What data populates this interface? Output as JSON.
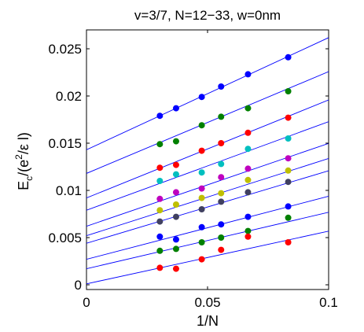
{
  "chart_data": {
    "type": "scatter",
    "title": "v=3/7, N=12−33, w=0nm",
    "xlabel": "1/N",
    "ylabel": {
      "base": "E",
      "sub": "c",
      "rest": "/(e",
      "sup": "2",
      "tail": "/ε l)"
    },
    "xlim": [
      0,
      0.1
    ],
    "ylim": [
      -0.0005,
      0.027
    ],
    "xticks": [
      0,
      0.05,
      0.1
    ],
    "xtick_labels": [
      "0",
      "0.05",
      "0.1"
    ],
    "yticks": [
      0,
      0.005,
      0.01,
      0.015,
      0.02,
      0.025
    ],
    "ytick_labels": [
      "0",
      "0.005",
      "0.01",
      "0.015",
      "0.02",
      "0.025"
    ],
    "grid": false,
    "fit_line_color": "#0000ff",
    "x": [
      0.0303,
      0.037,
      0.0476,
      0.0556,
      0.0667,
      0.0833
    ],
    "series": [
      {
        "color": "#0000ff",
        "values": [
          0.0179,
          0.0187,
          0.0199,
          0.021,
          0.0223,
          0.0241
        ],
        "fit": [
          0.0143,
          0.1188
        ]
      },
      {
        "color": "#008000",
        "values": [
          0.0149,
          0.0152,
          0.0169,
          0.0178,
          0.0187,
          0.0205
        ],
        "fit": [
          0.0118,
          0.1078
        ]
      },
      {
        "color": "#ff0000",
        "values": [
          0.0124,
          0.0127,
          0.0142,
          0.015,
          0.0161,
          0.0177
        ],
        "fit": [
          0.0092,
          0.1038
        ]
      },
      {
        "color": "#00bfbf",
        "values": [
          0.011,
          0.0117,
          0.0119,
          0.0128,
          0.0144,
          0.0155
        ],
        "fit": [
          0.0079,
          0.0938
        ]
      },
      {
        "color": "#bf00bf",
        "values": [
          0.0091,
          0.0098,
          0.0102,
          0.0114,
          0.0123,
          0.0134
        ],
        "fit": [
          0.0062,
          0.0878
        ]
      },
      {
        "color": "#bfbf00",
        "values": [
          0.0079,
          0.0085,
          0.0092,
          0.0097,
          0.0111,
          0.0121
        ],
        "fit": [
          0.0052,
          0.0818
        ]
      },
      {
        "color": "#404060",
        "values": [
          0.0067,
          0.0072,
          0.008,
          0.0088,
          0.0098,
          0.0109
        ],
        "fit": [
          0.0044,
          0.0768
        ]
      },
      {
        "color": "#0000ff",
        "values": [
          0.0051,
          0.0048,
          0.0061,
          0.0064,
          0.0072,
          0.0083
        ],
        "fit": [
          0.0027,
          0.0668
        ]
      },
      {
        "color": "#008000",
        "values": [
          0.0036,
          0.0038,
          0.0045,
          0.005,
          0.0057,
          0.0071
        ],
        "fit": [
          0.0017,
          0.0598
        ]
      },
      {
        "color": "#ff0000",
        "values": [
          0.0018,
          0.0017,
          0.0027,
          0.0037,
          0.0051,
          0.0045
        ],
        "fit": [
          0.0001,
          0.0558
        ]
      }
    ]
  }
}
